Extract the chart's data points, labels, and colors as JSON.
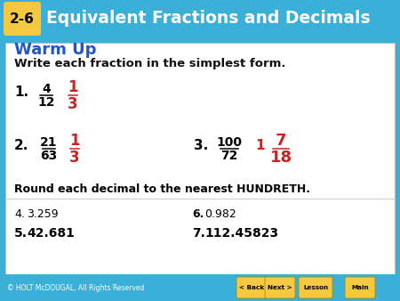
{
  "header_bg": "#3ab0d8",
  "header_text": "Equivalent Fractions and Decimals",
  "header_label": "2-6",
  "header_label_bg": "#f5c842",
  "warm_up_color": "#2255cc",
  "answer_color": "#cc2222",
  "black_text": "#111111",
  "footer_text": "© HOLT McDOUGAL, All Rights Reserved",
  "footer_buttons": [
    "< Back",
    "Next >",
    "Lesson",
    "Main"
  ],
  "title": "Warm Up",
  "subtitle": "Write each fraction in the simplest form.",
  "section2_title": "Round each decimal to the nearest HUNDRETH."
}
